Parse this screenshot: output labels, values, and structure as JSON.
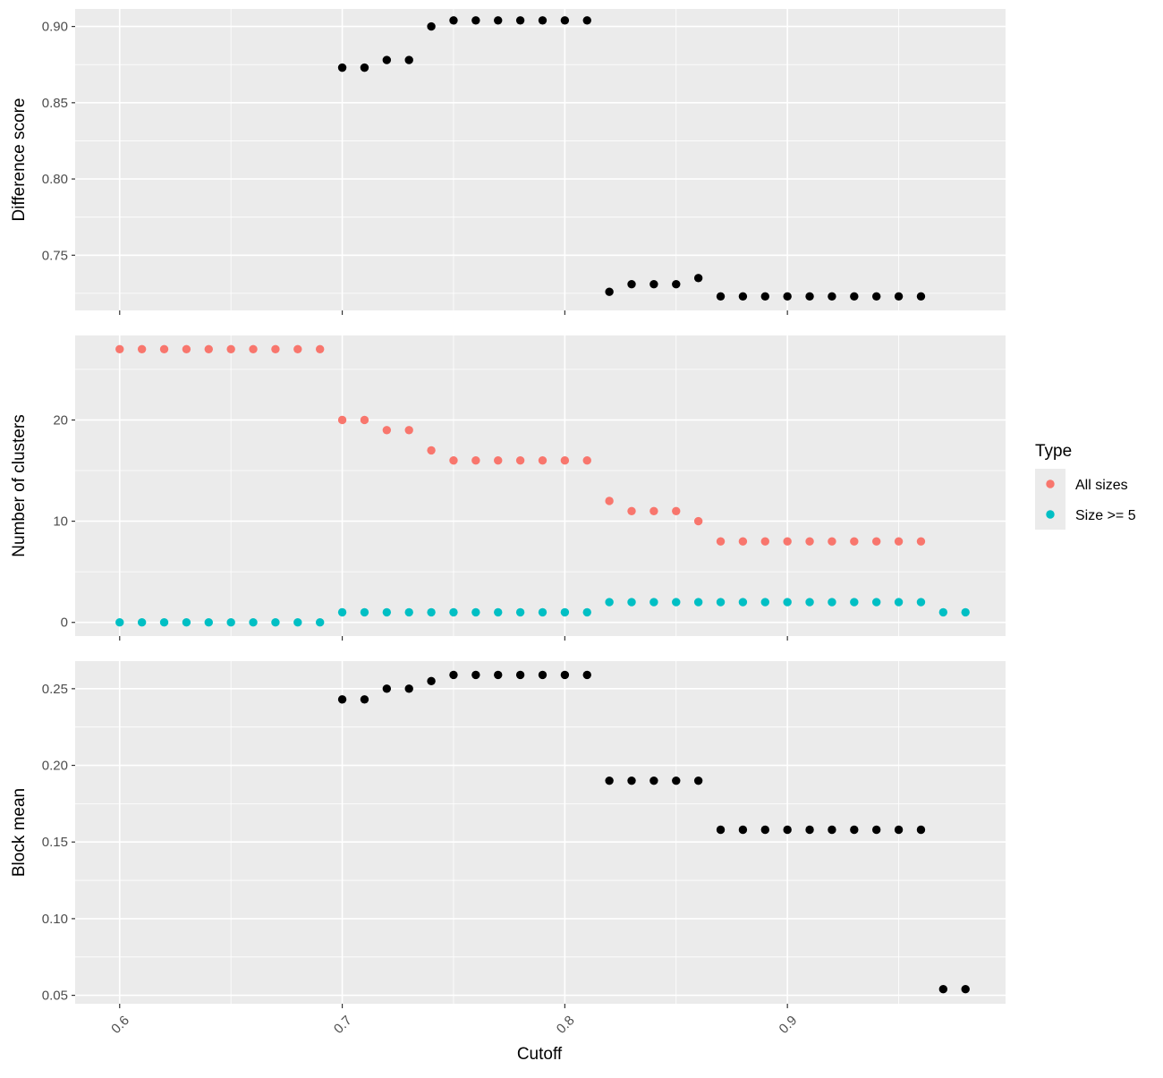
{
  "chart_data": [
    {
      "type": "scatter",
      "ylabel": "Difference score",
      "xlim": [
        0.58,
        0.998
      ],
      "ylim": [
        0.7138,
        0.9115
      ],
      "yticks": [
        0.75,
        0.8,
        0.85,
        0.9
      ],
      "ytick_labels": [
        "0.75",
        "0.80",
        "0.85",
        "0.90"
      ],
      "y_minor": [
        0.725,
        0.775,
        0.825,
        0.875
      ],
      "series": [
        {
          "color": "#000000",
          "x": [
            0.7,
            0.71,
            0.72,
            0.73,
            0.74,
            0.75,
            0.76,
            0.77,
            0.78,
            0.79,
            0.8,
            0.81,
            0.82,
            0.83,
            0.84,
            0.85,
            0.86,
            0.87,
            0.88,
            0.89,
            0.9,
            0.91,
            0.92,
            0.93,
            0.94,
            0.95,
            0.96
          ],
          "y": [
            0.873,
            0.873,
            0.878,
            0.878,
            0.9,
            0.904,
            0.904,
            0.904,
            0.904,
            0.904,
            0.904,
            0.904,
            0.726,
            0.731,
            0.731,
            0.731,
            0.735,
            0.723,
            0.723,
            0.723,
            0.723,
            0.723,
            0.723,
            0.723,
            0.723,
            0.723,
            0.723
          ]
        }
      ]
    },
    {
      "type": "scatter",
      "ylabel": "Number of clusters",
      "xlim": [
        0.58,
        0.998
      ],
      "ylim": [
        -1.35,
        28.35
      ],
      "yticks": [
        0,
        10,
        20
      ],
      "ytick_labels": [
        "0",
        "10",
        "20"
      ],
      "y_minor": [
        5,
        15,
        25
      ],
      "series": [
        {
          "name": "All sizes",
          "color": "#F8766D",
          "x": [
            0.6,
            0.61,
            0.62,
            0.63,
            0.64,
            0.65,
            0.66,
            0.67,
            0.68,
            0.69,
            0.7,
            0.71,
            0.72,
            0.73,
            0.74,
            0.75,
            0.76,
            0.77,
            0.78,
            0.79,
            0.8,
            0.81,
            0.82,
            0.83,
            0.84,
            0.85,
            0.86,
            0.87,
            0.88,
            0.89,
            0.9,
            0.91,
            0.92,
            0.93,
            0.94,
            0.95,
            0.96
          ],
          "y": [
            27,
            27,
            27,
            27,
            27,
            27,
            27,
            27,
            27,
            27,
            20,
            20,
            19,
            19,
            17,
            16,
            16,
            16,
            16,
            16,
            16,
            16,
            12,
            11,
            11,
            11,
            10,
            8,
            8,
            8,
            8,
            8,
            8,
            8,
            8,
            8,
            8
          ]
        },
        {
          "name": "Size >= 5",
          "color": "#00BFC4",
          "x": [
            0.6,
            0.61,
            0.62,
            0.63,
            0.64,
            0.65,
            0.66,
            0.67,
            0.68,
            0.69,
            0.7,
            0.71,
            0.72,
            0.73,
            0.74,
            0.75,
            0.76,
            0.77,
            0.78,
            0.79,
            0.8,
            0.81,
            0.82,
            0.83,
            0.84,
            0.85,
            0.86,
            0.87,
            0.88,
            0.89,
            0.9,
            0.91,
            0.92,
            0.93,
            0.94,
            0.95,
            0.96,
            0.97,
            0.98
          ],
          "y": [
            0,
            0,
            0,
            0,
            0,
            0,
            0,
            0,
            0,
            0,
            1,
            1,
            1,
            1,
            1,
            1,
            1,
            1,
            1,
            1,
            1,
            1,
            2,
            2,
            2,
            2,
            2,
            2,
            2,
            2,
            2,
            2,
            2,
            2,
            2,
            2,
            2,
            1,
            1
          ]
        }
      ]
    },
    {
      "type": "scatter",
      "ylabel": "Block mean",
      "xlabel": "Cutoff",
      "xlim": [
        0.58,
        0.998
      ],
      "ylim": [
        0.0445,
        0.268
      ],
      "yticks": [
        0.05,
        0.1,
        0.15,
        0.2,
        0.25
      ],
      "ytick_labels": [
        "0.05",
        "0.10",
        "0.15",
        "0.20",
        "0.25"
      ],
      "y_minor": [
        0.075,
        0.125,
        0.175,
        0.225
      ],
      "xticks": [
        0.6,
        0.7,
        0.8,
        0.9
      ],
      "xtick_labels": [
        "0.6",
        "0.7",
        "0.8",
        "0.9"
      ],
      "x_minor": [
        0.65,
        0.75,
        0.85,
        0.95
      ],
      "series": [
        {
          "color": "#000000",
          "x": [
            0.7,
            0.71,
            0.72,
            0.73,
            0.74,
            0.75,
            0.76,
            0.77,
            0.78,
            0.79,
            0.8,
            0.81,
            0.82,
            0.83,
            0.84,
            0.85,
            0.86,
            0.87,
            0.88,
            0.89,
            0.9,
            0.91,
            0.92,
            0.93,
            0.94,
            0.95,
            0.96,
            0.97,
            0.98
          ],
          "y": [
            0.243,
            0.243,
            0.25,
            0.25,
            0.255,
            0.259,
            0.259,
            0.259,
            0.259,
            0.259,
            0.259,
            0.259,
            0.19,
            0.19,
            0.19,
            0.19,
            0.19,
            0.158,
            0.158,
            0.158,
            0.158,
            0.158,
            0.158,
            0.158,
            0.158,
            0.158,
            0.158,
            0.054,
            0.054
          ]
        }
      ]
    }
  ],
  "legend": {
    "title": "Type",
    "position": "right",
    "items": [
      {
        "label": "All sizes",
        "color": "#F8766D"
      },
      {
        "label": "Size >= 5",
        "color": "#00BFC4"
      }
    ]
  },
  "style": {
    "panel_background": "#EBEBEB",
    "grid_color": "#FFFFFF",
    "tick_color": "#333333"
  }
}
